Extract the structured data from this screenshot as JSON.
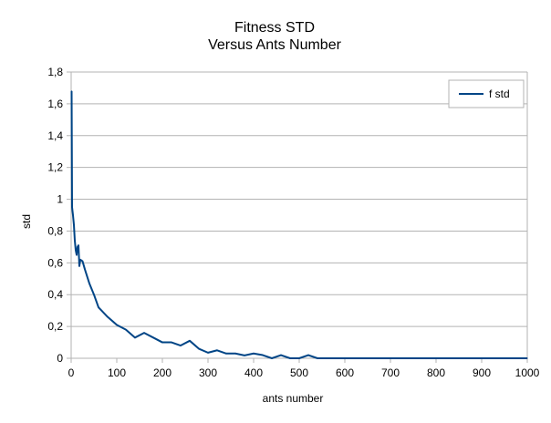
{
  "chart_data": {
    "type": "line",
    "title": "Fitness STD",
    "subtitle": "Versus Ants Number",
    "xlabel": "ants number",
    "ylabel": "std",
    "xlim": [
      0,
      1000
    ],
    "ylim": [
      0,
      1.8
    ],
    "x_ticks": [
      0,
      100,
      200,
      300,
      400,
      500,
      600,
      700,
      800,
      900,
      1000
    ],
    "y_ticks": [
      0,
      0.2,
      0.4,
      0.6,
      0.8,
      1,
      1.2,
      1.4,
      1.6,
      1.8
    ],
    "x_tick_labels": [
      "0",
      "100",
      "200",
      "300",
      "400",
      "500",
      "600",
      "700",
      "800",
      "900",
      "1000"
    ],
    "y_tick_labels": [
      "0",
      "0,2",
      "0,4",
      "0,6",
      "0,8",
      "1",
      "1,2",
      "1,4",
      "1,6",
      "1,8"
    ],
    "grid": "horizontal",
    "legend_position": "top-right",
    "line_color": "#004586",
    "series": [
      {
        "name": "f std",
        "points": [
          [
            1,
            1.68
          ],
          [
            2,
            0.95
          ],
          [
            4,
            0.9
          ],
          [
            6,
            0.84
          ],
          [
            8,
            0.74
          ],
          [
            10,
            0.68
          ],
          [
            12,
            0.65
          ],
          [
            14,
            0.7
          ],
          [
            16,
            0.71
          ],
          [
            18,
            0.58
          ],
          [
            20,
            0.62
          ],
          [
            25,
            0.61
          ],
          [
            30,
            0.56
          ],
          [
            40,
            0.47
          ],
          [
            50,
            0.4
          ],
          [
            60,
            0.32
          ],
          [
            80,
            0.26
          ],
          [
            100,
            0.21
          ],
          [
            120,
            0.18
          ],
          [
            140,
            0.13
          ],
          [
            160,
            0.16
          ],
          [
            180,
            0.13
          ],
          [
            200,
            0.1
          ],
          [
            220,
            0.1
          ],
          [
            240,
            0.08
          ],
          [
            260,
            0.11
          ],
          [
            280,
            0.06
          ],
          [
            300,
            0.035
          ],
          [
            320,
            0.05
          ],
          [
            340,
            0.03
          ],
          [
            360,
            0.03
          ],
          [
            380,
            0.018
          ],
          [
            400,
            0.03
          ],
          [
            420,
            0.02
          ],
          [
            440,
            0.0
          ],
          [
            460,
            0.02
          ],
          [
            480,
            0.0
          ],
          [
            500,
            0.0
          ],
          [
            520,
            0.02
          ],
          [
            540,
            0.0
          ],
          [
            560,
            0.0
          ],
          [
            600,
            0.0
          ],
          [
            700,
            0.0
          ],
          [
            800,
            0.0
          ],
          [
            900,
            0.0
          ],
          [
            1000,
            0.0
          ]
        ]
      }
    ]
  }
}
